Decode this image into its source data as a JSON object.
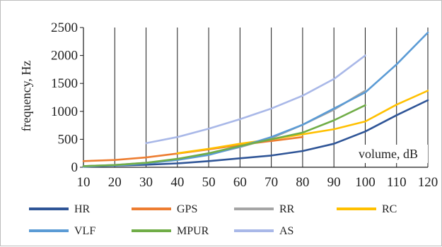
{
  "chart_data": {
    "type": "line",
    "title": "",
    "xlabel": "volume, dB",
    "ylabel": "frequency, Hz",
    "x_ticks": [
      10,
      20,
      30,
      40,
      50,
      60,
      70,
      80,
      90,
      100,
      110,
      120
    ],
    "y_ticks": [
      0,
      500,
      1000,
      1500,
      2000,
      2500
    ],
    "xlim": [
      10,
      120
    ],
    "ylim": [
      0,
      2500
    ],
    "grid": "vertical",
    "legend_position": "bottom",
    "series": [
      {
        "name": "HR",
        "color": "#2f5597",
        "x": [
          10,
          20,
          30,
          40,
          50,
          60,
          70,
          80,
          90,
          100,
          110,
          120
        ],
        "y": [
          20,
          30,
          45,
          70,
          110,
          160,
          210,
          290,
          420,
          640,
          930,
          1200
        ]
      },
      {
        "name": "GPS",
        "color": "#ed7d31",
        "x": [
          10,
          20,
          30,
          40,
          50,
          60,
          70,
          80
        ],
        "y": [
          110,
          130,
          175,
          245,
          320,
          400,
          470,
          540
        ]
      },
      {
        "name": "RR",
        "color": "#a5a5a5",
        "x": [
          10,
          20,
          30,
          40,
          50,
          60,
          70,
          80,
          90,
          100
        ],
        "y": [
          20,
          40,
          80,
          140,
          230,
          360,
          520,
          760,
          1030,
          1370
        ]
      },
      {
        "name": "RC",
        "color": "#ffc000",
        "x": [
          40,
          50,
          60,
          70,
          80,
          90,
          100,
          110,
          120
        ],
        "y": [
          250,
          330,
          420,
          500,
          590,
          680,
          820,
          1120,
          1370
        ]
      },
      {
        "name": "VLF",
        "color": "#5b9bd5",
        "x": [
          10,
          20,
          30,
          40,
          50,
          60,
          70,
          80,
          90,
          100,
          110,
          120
        ],
        "y": [
          10,
          30,
          70,
          130,
          220,
          370,
          540,
          760,
          1050,
          1340,
          1840,
          2410
        ]
      },
      {
        "name": "MPUR",
        "color": "#70ad47",
        "x": [
          10,
          20,
          30,
          40,
          50,
          60,
          70,
          80,
          90,
          100
        ],
        "y": [
          20,
          40,
          80,
          150,
          250,
          380,
          500,
          620,
          840,
          1110
        ]
      },
      {
        "name": "AS",
        "color": "#a9b8e8",
        "x": [
          30,
          40,
          50,
          60,
          70,
          80,
          90,
          100
        ],
        "y": [
          430,
          540,
          690,
          860,
          1050,
          1280,
          1580,
          2000
        ]
      }
    ]
  }
}
